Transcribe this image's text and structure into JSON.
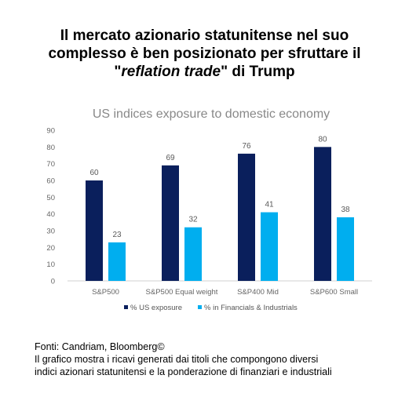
{
  "headline": {
    "line1": "Il mercato azionario statunitense nel suo",
    "line2": "complesso è ben posizionato per sfruttare il",
    "line3_quote_open": "\"",
    "line3_em": "reflation trade",
    "line3_rest": "\" di Trump"
  },
  "chart_data": {
    "type": "bar",
    "title": "US indices exposure to domestic economy",
    "categories": [
      "S&P500",
      "S&P500 Equal weight",
      "S&P400 Mid",
      "S&P600 Small"
    ],
    "series": [
      {
        "name": "% US exposure",
        "values": [
          60,
          69,
          76,
          80
        ],
        "color": "#0a1f5c"
      },
      {
        "name": "% in Financials & Industrials",
        "values": [
          23,
          32,
          41,
          38
        ],
        "color": "#00aeef"
      }
    ],
    "ylim": [
      0,
      90
    ],
    "yticks": [
      "0",
      "10",
      "20",
      "30",
      "40",
      "50",
      "60",
      "70",
      "80",
      "90"
    ],
    "xlabel": "",
    "ylabel": "",
    "legend": "bottom",
    "grid": false
  },
  "footer": {
    "source": "Fonti: Candriam, Bloomberg©",
    "note_line1": "Il grafico mostra i ricavi generati dai titoli che compongono diversi",
    "note_line2": "indici azionari statunitensi e la ponderazione di finanziari e industriali"
  }
}
